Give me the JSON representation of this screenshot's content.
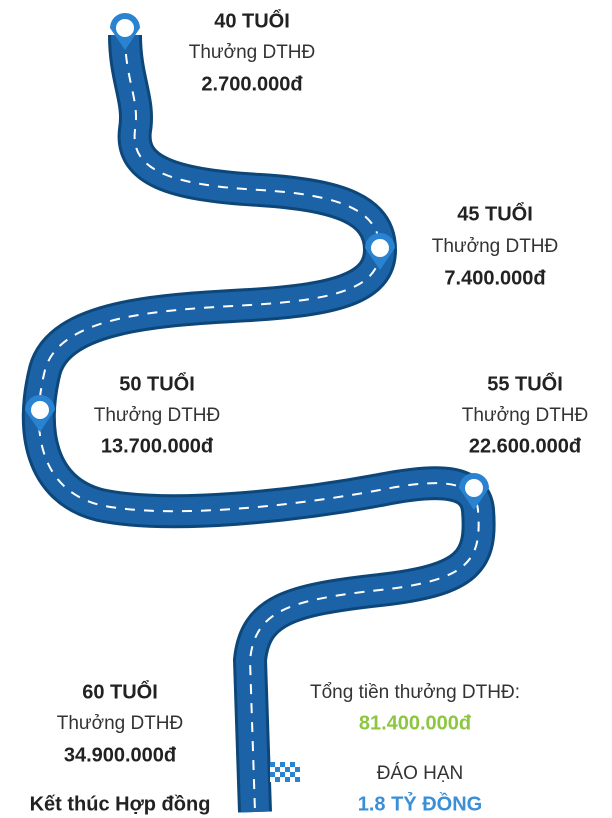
{
  "milestones": [
    {
      "age": "40 TUỔI",
      "label": "Thưởng DTHĐ",
      "amount": "2.700.000đ"
    },
    {
      "age": "45 TUỔI",
      "label": "Thưởng DTHĐ",
      "amount": "7.400.000đ"
    },
    {
      "age": "50 TUỔI",
      "label": "Thưởng DTHĐ",
      "amount": "13.700.000đ"
    },
    {
      "age": "55 TUỔI",
      "label": "Thưởng DTHĐ",
      "amount": "22.600.000đ"
    },
    {
      "age": "60 TUỔI",
      "label": "Thưởng DTHĐ",
      "amount": "34.900.000đ"
    }
  ],
  "total": {
    "label": "Tổng tiền thưởng DTHĐ:",
    "amount": "81.400.000đ"
  },
  "maturity": {
    "label": "ĐÁO HẠN",
    "amount": "1.8 TỶ ĐỒNG"
  },
  "end": "Kết thúc Hợp đồng"
}
